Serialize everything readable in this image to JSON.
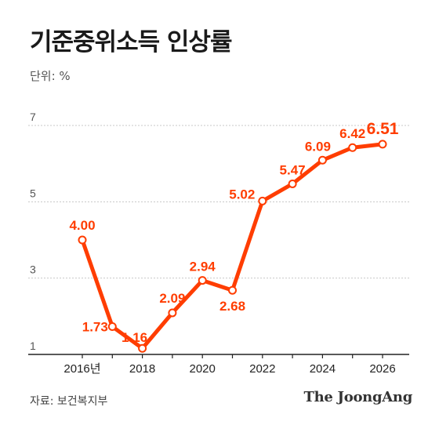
{
  "header": {
    "title": "기준중위소득 인상률",
    "unit": "단위: %"
  },
  "footer": {
    "source": "자료: 보건복지부",
    "brand": "The JoongAng"
  },
  "colors": {
    "line": "#ff3d00",
    "grid": "#c8c8c8",
    "axis": "#222222",
    "marker_fill": "#ffffff"
  },
  "chart_data": {
    "type": "line",
    "title": "기준중위소득 인상률",
    "ylabel": "단위: %",
    "xlabel": "",
    "x": [
      2016,
      2017,
      2018,
      2019,
      2020,
      2021,
      2022,
      2023,
      2024,
      2025,
      2026
    ],
    "series": [
      {
        "values": [
          4.0,
          1.73,
          1.16,
          2.09,
          2.94,
          2.68,
          5.02,
          5.47,
          6.09,
          6.42,
          6.51
        ],
        "labels": [
          "4.00",
          "1.73",
          "1.16",
          "2.09",
          "2.94",
          "2.68",
          "5.02",
          "5.47",
          "6.09",
          "6.42",
          "6.51"
        ]
      }
    ],
    "ylim": [
      1,
      7
    ],
    "yticks": [
      "1",
      "3",
      "5",
      "7"
    ],
    "xticks": [
      "2016년",
      "2018",
      "2020",
      "2022",
      "2024",
      "2026"
    ],
    "xtick_years": [
      2016,
      2018,
      2020,
      2022,
      2024,
      2026
    ],
    "grid": "horizontal-dotted"
  }
}
